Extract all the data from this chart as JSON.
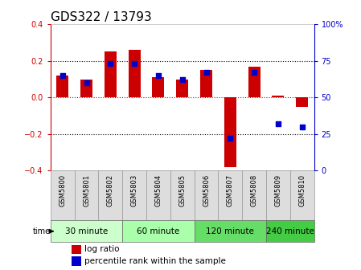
{
  "title": "GDS322 / 13793",
  "samples": [
    "GSM5800",
    "GSM5801",
    "GSM5802",
    "GSM5803",
    "GSM5804",
    "GSM5805",
    "GSM5806",
    "GSM5807",
    "GSM5808",
    "GSM5809",
    "GSM5810"
  ],
  "log_ratios": [
    0.12,
    0.1,
    0.25,
    0.26,
    0.11,
    0.1,
    0.15,
    -0.38,
    0.17,
    0.01,
    -0.05
  ],
  "percentile_ranks": [
    65,
    60,
    73,
    73,
    65,
    62,
    67,
    22,
    67,
    32,
    30
  ],
  "groups_info": [
    {
      "label": "30 minute",
      "indices": [
        0,
        1,
        2
      ],
      "color": "#ccffcc"
    },
    {
      "label": "60 minute",
      "indices": [
        3,
        4,
        5
      ],
      "color": "#aaffaa"
    },
    {
      "label": "120 minute",
      "indices": [
        6,
        7,
        8
      ],
      "color": "#66dd66"
    },
    {
      "label": "240 minute",
      "indices": [
        9,
        10
      ],
      "color": "#44cc44"
    }
  ],
  "bar_color": "#cc0000",
  "dot_color": "#0000cc",
  "ylim_left": [
    -0.4,
    0.4
  ],
  "ylim_right": [
    0,
    100
  ],
  "yticks_left": [
    -0.4,
    -0.2,
    0.0,
    0.2,
    0.4
  ],
  "yticks_right": [
    0,
    25,
    50,
    75,
    100
  ],
  "bar_width": 0.5,
  "dot_size": 22,
  "background_color": "#ffffff",
  "tick_label_fontsize": 7,
  "title_fontsize": 11,
  "legend_fontsize": 7.5,
  "group_fontsize": 7.5,
  "sample_fontsize": 6
}
